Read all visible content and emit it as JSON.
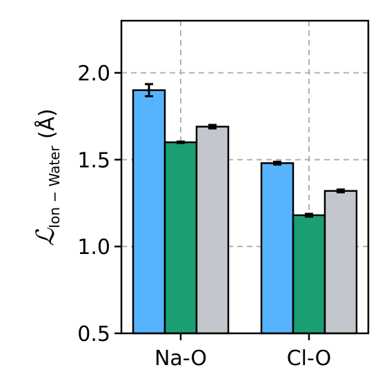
{
  "chart_data": {
    "type": "bar",
    "categories": [
      "Na-O",
      "Cl-O"
    ],
    "series": [
      {
        "color": "#56b4fe",
        "values": [
          1.9,
          1.48
        ],
        "errors": [
          0.035,
          0.008
        ]
      },
      {
        "color": "#1b9e74",
        "values": [
          1.6,
          1.18
        ],
        "errors": [
          0.004,
          0.008
        ]
      },
      {
        "color": "#c3c6cd",
        "values": [
          1.69,
          1.32
        ],
        "errors": [
          0.01,
          0.008
        ]
      }
    ],
    "ylabel": {
      "main": "ℒ",
      "sub": "Ion − Water",
      "unit": "(Å)"
    },
    "ylim": [
      0.5,
      2.3
    ],
    "yticks": [
      "0.5",
      "1.0",
      "1.5",
      "2.0"
    ],
    "grid": true
  }
}
